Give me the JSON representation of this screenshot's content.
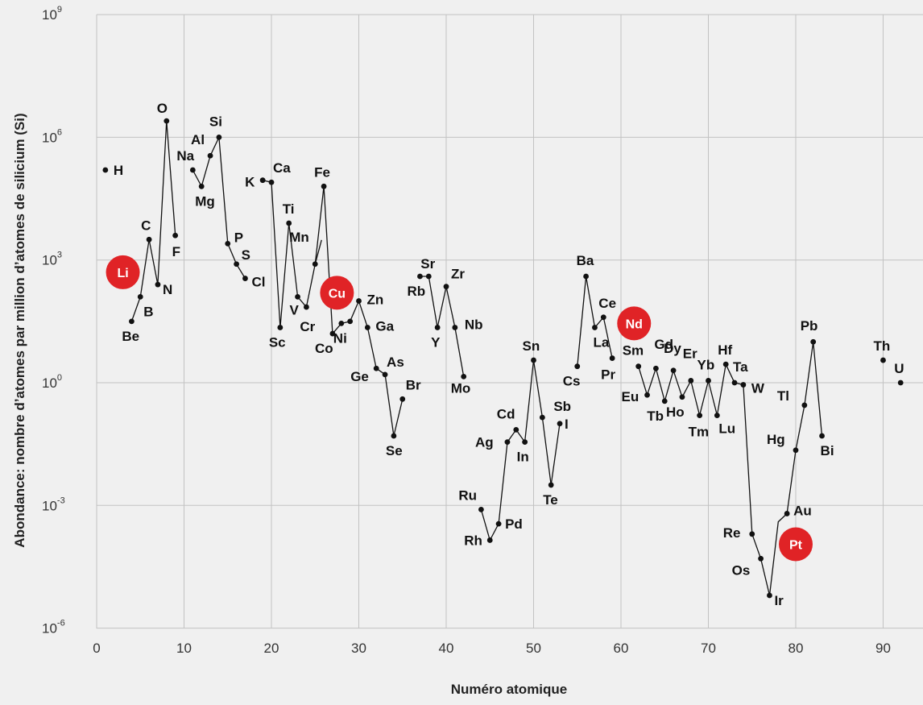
{
  "chart_data": {
    "type": "line",
    "xlabel": "Numéro atomique",
    "ylabel": "Abondance: nombre d’atomes par million d’atomes de silicium (Si)",
    "xlim": [
      0,
      95
    ],
    "ylim_log10": [
      -6,
      9
    ],
    "y_scale": "log",
    "x_ticks": [
      0,
      10,
      20,
      30,
      40,
      50,
      60,
      70,
      80,
      90
    ],
    "y_ticks": [
      {
        "base": "10",
        "exp": "9",
        "log": 9
      },
      {
        "base": "10",
        "exp": "6",
        "log": 6
      },
      {
        "base": "10",
        "exp": "3",
        "log": 3
      },
      {
        "base": "10",
        "exp": "0",
        "log": 0
      },
      {
        "base": "10",
        "exp": "-3",
        "log": -3
      },
      {
        "base": "10",
        "exp": "-6",
        "log": -6
      }
    ],
    "grid": true,
    "highlight_color": "#e02326",
    "points": [
      {
        "z": 1,
        "label": "H",
        "log": 5.2
      },
      {
        "z": 4,
        "label": "Be",
        "log": 1.5
      },
      {
        "z": 5,
        "label": "B",
        "log": 2.1
      },
      {
        "z": 6,
        "label": "C",
        "log": 3.5
      },
      {
        "z": 7,
        "label": "N",
        "log": 2.4
      },
      {
        "z": 8,
        "label": "O",
        "log": 6.4
      },
      {
        "z": 9,
        "label": "F",
        "log": 3.6
      },
      {
        "z": 11,
        "label": "Na",
        "log": 5.2
      },
      {
        "z": 12,
        "label": "Mg",
        "log": 4.8
      },
      {
        "z": 13,
        "label": "Al",
        "log": 5.55
      },
      {
        "z": 14,
        "label": "Si",
        "log": 6.0
      },
      {
        "z": 15,
        "label": "P",
        "log": 3.4
      },
      {
        "z": 16,
        "label": "S",
        "log": 2.9
      },
      {
        "z": 17,
        "label": "Cl",
        "log": 2.55
      },
      {
        "z": 19,
        "label": "K",
        "log": 4.95
      },
      {
        "z": 20,
        "label": "Ca",
        "log": 4.9
      },
      {
        "z": 21,
        "label": "Sc",
        "log": 1.35
      },
      {
        "z": 22,
        "label": "Ti",
        "log": 3.9
      },
      {
        "z": 23,
        "label": "V",
        "log": 2.1
      },
      {
        "z": 24,
        "label": "Cr",
        "log": 1.85
      },
      {
        "z": 25,
        "label": "Mn",
        "log": 2.9
      },
      {
        "z": 26,
        "label": "Fe",
        "log": 4.8
      },
      {
        "z": 27,
        "label": "Co",
        "log": 1.2
      },
      {
        "z": 28,
        "label": "Ni",
        "log": 1.45
      },
      {
        "z": 29,
        "label": "Cu",
        "log": 1.5
      },
      {
        "z": 30,
        "label": "Zn",
        "log": 2.0
      },
      {
        "z": 31,
        "label": "Ga",
        "log": 1.35
      },
      {
        "z": 32,
        "label": "Ge",
        "log": 0.35
      },
      {
        "z": 33,
        "label": "As",
        "log": 0.2
      },
      {
        "z": 34,
        "label": "Se",
        "log": -1.3
      },
      {
        "z": 35,
        "label": "Br",
        "log": -0.4
      },
      {
        "z": 37,
        "label": "Rb",
        "log": 2.6
      },
      {
        "z": 38,
        "label": "Sr",
        "log": 2.6
      },
      {
        "z": 39,
        "label": "Y",
        "log": 1.35
      },
      {
        "z": 40,
        "label": "Zr",
        "log": 2.35
      },
      {
        "z": 41,
        "label": "Nb",
        "log": 1.35
      },
      {
        "z": 42,
        "label": "Mo",
        "log": 0.15
      },
      {
        "z": 44,
        "label": "Ru",
        "log": -3.1
      },
      {
        "z": 45,
        "label": "Rh",
        "log": -3.85
      },
      {
        "z": 46,
        "label": "Pd",
        "log": -3.45
      },
      {
        "z": 47,
        "label": "Ag",
        "log": -1.45
      },
      {
        "z": 48,
        "label": "Cd",
        "log": -1.15
      },
      {
        "z": 49,
        "label": "In",
        "log": -1.45
      },
      {
        "z": 50,
        "label": "Sn",
        "log": 0.55
      },
      {
        "z": 51,
        "label": "Sb",
        "log": -0.85
      },
      {
        "z": 52,
        "label": "Te",
        "log": -2.5
      },
      {
        "z": 53,
        "label": "I",
        "log": -1.0
      },
      {
        "z": 55,
        "label": "Cs",
        "log": 0.4
      },
      {
        "z": 56,
        "label": "Ba",
        "log": 2.6
      },
      {
        "z": 57,
        "label": "La",
        "log": 1.35
      },
      {
        "z": 58,
        "label": "Ce",
        "log": 1.6
      },
      {
        "z": 59,
        "label": "Pr",
        "log": 0.6
      },
      {
        "z": 62,
        "label": "Sm",
        "log": 0.4
      },
      {
        "z": 63,
        "label": "Eu",
        "log": -0.3
      },
      {
        "z": 64,
        "label": "Gd",
        "log": 0.35
      },
      {
        "z": 65,
        "label": "Tb",
        "log": -0.45
      },
      {
        "z": 66,
        "label": "Dy",
        "log": 0.3
      },
      {
        "z": 67,
        "label": "Ho",
        "log": -0.35
      },
      {
        "z": 68,
        "label": "Er",
        "log": 0.05
      },
      {
        "z": 69,
        "label": "Tm",
        "log": -0.8
      },
      {
        "z": 70,
        "label": "Yb",
        "log": 0.05
      },
      {
        "z": 71,
        "label": "Lu",
        "log": -0.8
      },
      {
        "z": 72,
        "label": "Hf",
        "log": 0.45
      },
      {
        "z": 73,
        "label": "Ta",
        "log": 0.0
      },
      {
        "z": 74,
        "label": "W",
        "log": -0.05
      },
      {
        "z": 75,
        "label": "Re",
        "log": -3.7
      },
      {
        "z": 76,
        "label": "Os",
        "log": -4.3
      },
      {
        "z": 77,
        "label": "Ir",
        "log": -5.2
      },
      {
        "z": 78,
        "label": "Pt",
        "log": -3.4
      },
      {
        "z": 79,
        "label": "Au",
        "log": -3.2
      },
      {
        "z": 80,
        "label": "Hg",
        "log": -1.65
      },
      {
        "z": 81,
        "label": "Tl",
        "log": -0.55
      },
      {
        "z": 82,
        "label": "Pb",
        "log": 1.0
      },
      {
        "z": 83,
        "label": "Bi",
        "log": -1.3
      },
      {
        "z": 90,
        "label": "Th",
        "log": 0.55
      },
      {
        "z": 92,
        "label": "U",
        "log": 0.0
      }
    ],
    "highlights": [
      {
        "label": "Li",
        "z": 3,
        "log": 2.7
      },
      {
        "label": "Cu",
        "z": 27.5,
        "log": 2.2
      },
      {
        "label": "Nd",
        "z": 61.5,
        "log": 1.45
      },
      {
        "label": "Pt",
        "z": 80,
        "log": -3.95
      }
    ]
  }
}
